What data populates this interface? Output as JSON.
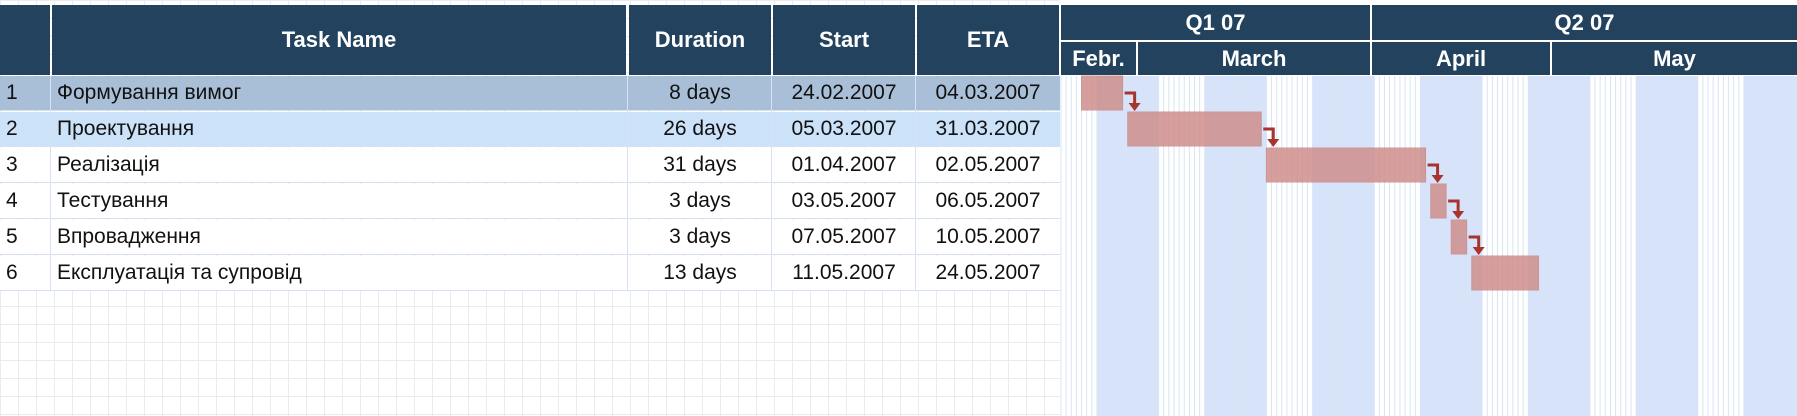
{
  "table": {
    "headers": {
      "num": "",
      "task": "Task Name",
      "duration": "Duration",
      "start": "Start",
      "eta": "ETA"
    },
    "rows": [
      {
        "num": "1",
        "task": "Формування вимог",
        "duration": "8 days",
        "start": "24.02.2007",
        "eta": "04.03.2007",
        "selected": true
      },
      {
        "num": "2",
        "task": "Проектування",
        "duration": "26 days",
        "start": "05.03.2007",
        "eta": "31.03.2007",
        "highlighted": true
      },
      {
        "num": "3",
        "task": "Реалізація",
        "duration": "31 days",
        "start": "01.04.2007",
        "eta": "02.05.2007"
      },
      {
        "num": "4",
        "task": "Тестування",
        "duration": "3 days",
        "start": "03.05.2007",
        "eta": "06.05.2007"
      },
      {
        "num": "5",
        "task": "Впровадження",
        "duration": "3 days",
        "start": "07.05.2007",
        "eta": "10.05.2007"
      },
      {
        "num": "6",
        "task": "Експлуатація та супровід",
        "duration": "13 days",
        "start": "11.05.2007",
        "eta": "24.05.2007"
      }
    ]
  },
  "chart_data": {
    "type": "gantt",
    "quarters": [
      "Q1 07",
      "Q2 07"
    ],
    "months": [
      "Febr.",
      "March",
      "April",
      "May"
    ],
    "tasks": [
      {
        "start": "2007-02-24",
        "end": "2007-03-04"
      },
      {
        "start": "2007-03-05",
        "end": "2007-03-31"
      },
      {
        "start": "2007-04-01",
        "end": "2007-05-02"
      },
      {
        "start": "2007-05-03",
        "end": "2007-05-06"
      },
      {
        "start": "2007-05-07",
        "end": "2007-05-10"
      },
      {
        "start": "2007-05-11",
        "end": "2007-05-24"
      }
    ],
    "dependencies": [
      [
        0,
        1
      ],
      [
        1,
        2
      ],
      [
        2,
        3
      ],
      [
        3,
        4
      ],
      [
        4,
        5
      ]
    ],
    "weekend_shading": true
  },
  "colors": {
    "header_bg": "#22425e",
    "selected_row": "#a9bfd8",
    "highlight_row": "#cce2f9",
    "bar": "#cf8f8c",
    "arrow": "#a8342e",
    "weekend": "#d3e0fb"
  }
}
